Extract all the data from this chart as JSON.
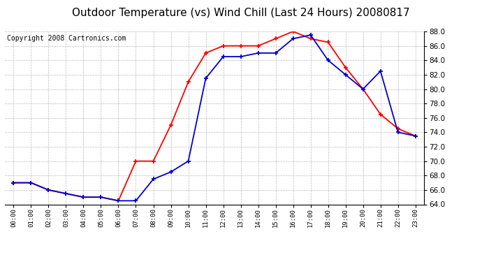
{
  "title": "Outdoor Temperature (vs) Wind Chill (Last 24 Hours) 20080817",
  "copyright_text": "Copyright 2008 Cartronics.com",
  "hours": [
    "00:00",
    "01:00",
    "02:00",
    "03:00",
    "04:00",
    "05:00",
    "06:00",
    "07:00",
    "08:00",
    "09:00",
    "10:00",
    "11:00",
    "12:00",
    "13:00",
    "14:00",
    "15:00",
    "16:00",
    "17:00",
    "18:00",
    "19:00",
    "20:00",
    "21:00",
    "22:00",
    "23:00"
  ],
  "temp": [
    67.0,
    67.0,
    66.0,
    65.5,
    65.0,
    65.0,
    64.5,
    70.0,
    70.0,
    75.0,
    81.0,
    85.0,
    86.0,
    86.0,
    86.0,
    87.0,
    88.0,
    87.0,
    86.5,
    83.0,
    80.0,
    76.5,
    74.5,
    73.5
  ],
  "windchill": [
    67.0,
    67.0,
    66.0,
    65.5,
    65.0,
    65.0,
    64.5,
    64.5,
    67.5,
    68.5,
    70.0,
    81.5,
    84.5,
    84.5,
    85.0,
    85.0,
    87.0,
    87.5,
    84.0,
    82.0,
    80.0,
    82.5,
    74.0,
    73.5
  ],
  "temp_color": "#ff0000",
  "windchill_color": "#0000cc",
  "ylim": [
    64.0,
    88.0
  ],
  "ytick_min": 64.0,
  "ytick_max": 88.0,
  "ytick_step": 2.0,
  "bg_color": "#ffffff",
  "grid_color": "#bbbbbb",
  "title_fontsize": 11,
  "copyright_fontsize": 7
}
